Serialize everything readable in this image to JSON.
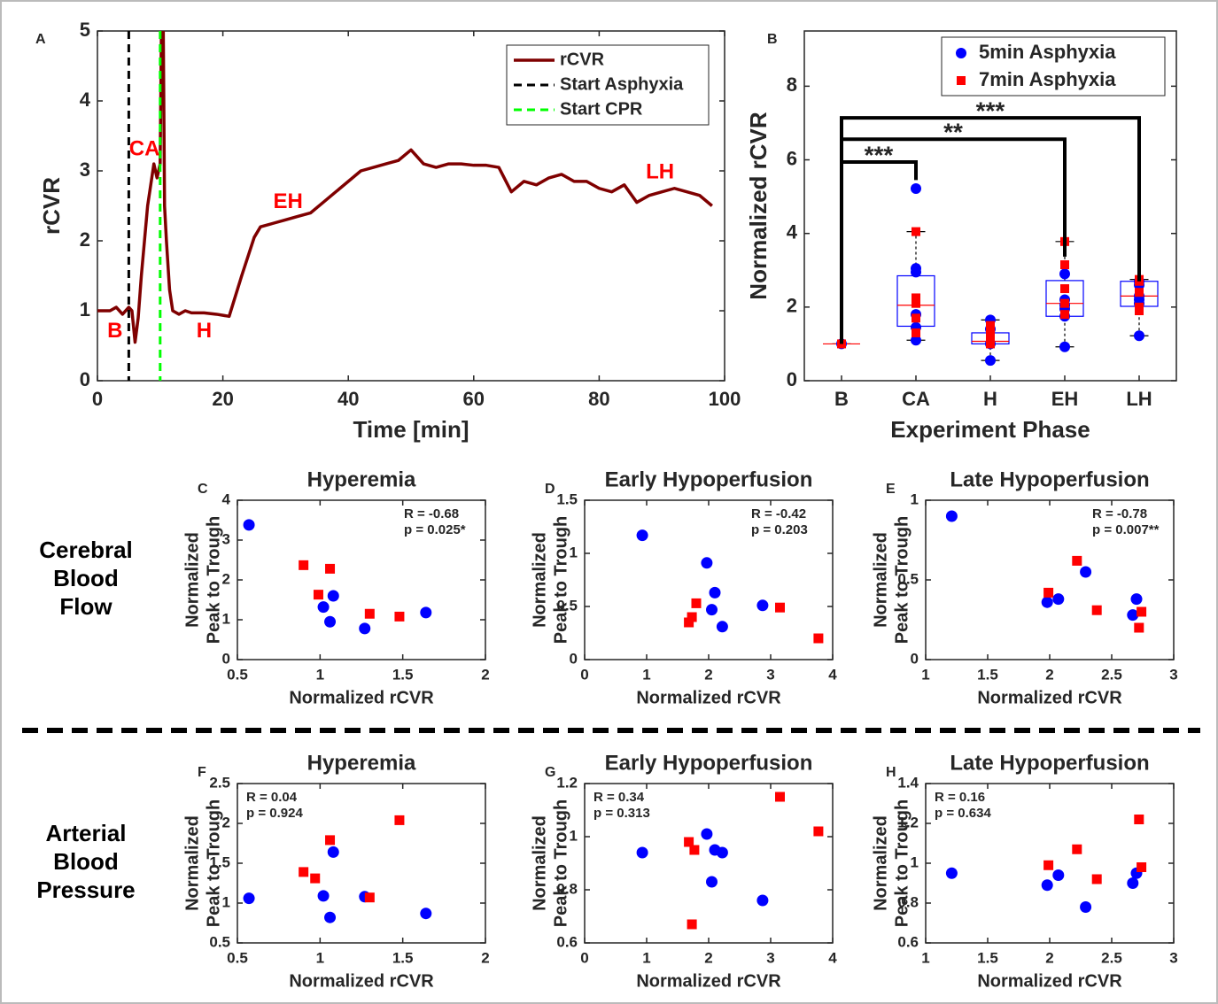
{
  "chart_data": [
    {
      "type": "line",
      "panel": "A",
      "xlabel": "Time [min]",
      "ylabel": "rCVR",
      "xlim": [
        0,
        100
      ],
      "ylim": [
        0,
        5
      ],
      "xticks": [
        0,
        20,
        40,
        60,
        80,
        100
      ],
      "yticks": [
        0,
        1,
        2,
        3,
        4,
        5
      ],
      "legend": "upper right",
      "series": [
        {
          "name": "rCVR",
          "color": "#7f0000",
          "x": [
            0,
            2,
            3,
            4,
            5,
            5.5,
            6,
            6.5,
            7,
            7.5,
            8,
            8.5,
            9,
            9.5,
            10,
            10.2,
            10.5,
            10.7,
            11,
            11.5,
            12,
            13,
            14,
            15,
            17,
            19,
            21,
            23,
            25,
            26,
            28,
            30,
            32,
            34,
            36,
            38,
            40,
            42,
            44,
            46,
            48,
            50,
            52,
            54,
            56,
            58,
            60,
            62,
            64,
            66,
            68,
            70,
            72,
            74,
            76,
            78,
            80,
            82,
            84,
            86,
            88,
            90,
            92,
            94,
            96,
            98
          ],
          "values": [
            1.0,
            1.0,
            1.05,
            0.95,
            1.05,
            1.0,
            0.55,
            0.9,
            1.5,
            2.0,
            2.5,
            2.8,
            3.1,
            2.9,
            3.1,
            5,
            5,
            2.5,
            2.0,
            1.3,
            1.0,
            0.95,
            1.0,
            0.97,
            0.97,
            0.95,
            0.92,
            1.5,
            2.05,
            2.2,
            2.25,
            2.3,
            2.35,
            2.4,
            2.55,
            2.7,
            2.85,
            3.0,
            3.05,
            3.1,
            3.15,
            3.3,
            3.1,
            3.05,
            3.1,
            3.1,
            3.08,
            3.08,
            3.05,
            2.7,
            2.85,
            2.8,
            2.9,
            2.95,
            2.85,
            2.85,
            2.75,
            2.7,
            2.8,
            2.55,
            2.65,
            2.7,
            2.75,
            2.7,
            2.65,
            2.5
          ]
        }
      ],
      "vlines": [
        {
          "name": "Start Asphyxia",
          "x": 5,
          "color": "#000000"
        },
        {
          "name": "Start CPR",
          "x": 10,
          "color": "#00ff00"
        }
      ],
      "annotations": [
        {
          "text": "B",
          "x": 2.8,
          "y": 0.7
        },
        {
          "text": "CA",
          "x": 7.5,
          "y": 3.3
        },
        {
          "text": "H",
          "x": 17,
          "y": 0.7
        },
        {
          "text": "EH",
          "x": 30.4,
          "y": 2.55
        },
        {
          "text": "LH",
          "x": 89.7,
          "y": 2.97
        }
      ],
      "annotation_color": "#ff0000"
    },
    {
      "type": "box",
      "panel": "B",
      "xlabel": "Experiment Phase",
      "ylabel": "Normalized rCVR",
      "categories": [
        "B",
        "CA",
        "H",
        "EH",
        "LH"
      ],
      "ylim": [
        0,
        9.5
      ],
      "yticks": [
        0,
        2,
        4,
        6,
        8
      ],
      "legend": "upper right",
      "boxes": [
        {
          "q1": 1,
          "median": 1,
          "q3": 1,
          "low": 1,
          "high": 1
        },
        {
          "q1": 1.48,
          "median": 2.05,
          "q3": 2.85,
          "low": 1.1,
          "high": 4.05
        },
        {
          "q1": 1.0,
          "median": 1.07,
          "q3": 1.3,
          "low": 0.55,
          "high": 1.65
        },
        {
          "q1": 1.75,
          "median": 2.1,
          "q3": 2.72,
          "low": 0.92,
          "high": 3.78
        },
        {
          "q1": 2.02,
          "median": 2.3,
          "q3": 2.7,
          "low": 1.22,
          "high": 2.75
        }
      ],
      "series": [
        {
          "name": "5min Asphyxia",
          "color": "#0000ff",
          "marker": "circle",
          "values": [
            [
              1
            ],
            [
              5.22,
              3.05,
              2.95,
              1.8,
              1.45,
              1.1
            ],
            [
              1.65,
              1.4,
              1.0,
              0.55
            ],
            [
              2.9,
              2.2,
              2.05,
              1.95,
              1.75,
              0.92
            ],
            [
              2.7,
              2.6,
              2.3,
              2.2,
              2.1,
              1.22
            ]
          ]
        },
        {
          "name": "7min Asphyxia",
          "color": "#ff0000",
          "marker": "square",
          "values": [
            [
              1
            ],
            [
              4.05,
              2.25,
              2.1,
              1.7,
              1.3
            ],
            [
              1.5,
              1.3,
              1.2,
              1.0
            ],
            [
              3.78,
              3.15,
              2.5,
              2.1,
              1.8
            ],
            [
              2.75,
              2.7,
              2.4,
              2.0,
              1.9
            ]
          ]
        }
      ],
      "brackets": [
        {
          "from": "B",
          "to": "CA",
          "y": 5.94,
          "drop": 5.45,
          "label": "***"
        },
        {
          "from": "B",
          "to": "EH",
          "y": 6.56,
          "drop": 3.37,
          "label": "**"
        },
        {
          "from": "B",
          "to": "LH",
          "y": 7.14,
          "drop": 2.7,
          "label": "***"
        }
      ]
    },
    {
      "type": "scatter",
      "panel": "C",
      "title": "Hyperemia",
      "xlabel": "Normalized rCVR",
      "ylabel": [
        "Normalized",
        "Peak to Trough"
      ],
      "xlim": [
        0.5,
        2
      ],
      "ylim": [
        0,
        4
      ],
      "xticks": [
        0.5,
        1,
        1.5,
        2
      ],
      "yticks": [
        0,
        1,
        2,
        3,
        4
      ],
      "annotation": [
        "R = -0.68",
        "p = 0.025*"
      ],
      "annotation_corner": "upper right",
      "series": [
        {
          "color": "#0000ff",
          "marker": "circle",
          "x": [
            0.57,
            1.02,
            1.06,
            1.08,
            1.27,
            1.64
          ],
          "values": [
            3.38,
            1.32,
            0.95,
            1.6,
            0.78,
            1.18
          ]
        },
        {
          "color": "#ff0000",
          "marker": "square",
          "x": [
            0.9,
            0.99,
            1.06,
            1.3,
            1.48
          ],
          "values": [
            2.37,
            1.63,
            2.28,
            1.15,
            1.08
          ]
        }
      ]
    },
    {
      "type": "scatter",
      "panel": "D",
      "title": "Early Hypoperfusion",
      "xlabel": "Normalized rCVR",
      "ylabel": [
        "Normalized",
        "Peak to Trough"
      ],
      "xlim": [
        0,
        4
      ],
      "ylim": [
        0,
        1.5
      ],
      "xticks": [
        0,
        1,
        2,
        3,
        4
      ],
      "yticks": [
        0,
        0.5,
        1,
        1.5
      ],
      "annotation": [
        "R = -0.42",
        "p = 0.203"
      ],
      "annotation_corner": "upper right",
      "series": [
        {
          "color": "#0000ff",
          "marker": "circle",
          "x": [
            0.93,
            1.97,
            2.1,
            2.05,
            2.22,
            2.87
          ],
          "values": [
            1.17,
            0.91,
            0.63,
            0.47,
            0.31,
            0.51
          ]
        },
        {
          "color": "#ff0000",
          "marker": "square",
          "x": [
            1.68,
            1.73,
            1.8,
            3.15,
            3.77
          ],
          "values": [
            0.35,
            0.4,
            0.53,
            0.49,
            0.2
          ]
        }
      ]
    },
    {
      "type": "scatter",
      "panel": "E",
      "title": "Late Hypoperfusion",
      "xlabel": "Normalized rCVR",
      "ylabel": [
        "Normalized",
        "Peak to Trough"
      ],
      "xlim": [
        1,
        3
      ],
      "ylim": [
        0,
        1
      ],
      "xticks": [
        1,
        1.5,
        2,
        2.5,
        3
      ],
      "yticks": [
        0,
        0.5,
        1
      ],
      "annotation": [
        "R = -0.78",
        "p = 0.007**"
      ],
      "annotation_corner": "upper right",
      "series": [
        {
          "color": "#0000ff",
          "marker": "circle",
          "x": [
            1.21,
            1.98,
            2.07,
            2.29,
            2.67,
            2.7
          ],
          "values": [
            0.9,
            0.36,
            0.38,
            0.55,
            0.28,
            0.38
          ]
        },
        {
          "color": "#ff0000",
          "marker": "square",
          "x": [
            1.99,
            2.22,
            2.38,
            2.72,
            2.74
          ],
          "values": [
            0.42,
            0.62,
            0.31,
            0.2,
            0.3
          ]
        }
      ]
    },
    {
      "type": "scatter",
      "panel": "F",
      "title": "Hyperemia",
      "xlabel": "Normalized rCVR",
      "ylabel": [
        "Normalized",
        "Peak to Trough"
      ],
      "xlim": [
        0.5,
        2
      ],
      "ylim": [
        0.5,
        2.5
      ],
      "xticks": [
        0.5,
        1,
        1.5,
        2
      ],
      "yticks": [
        0.5,
        1,
        1.5,
        2,
        2.5
      ],
      "annotation": [
        "R = 0.04",
        "p = 0.924"
      ],
      "annotation_corner": "upper left",
      "series": [
        {
          "color": "#0000ff",
          "marker": "circle",
          "x": [
            0.57,
            1.02,
            1.06,
            1.08,
            1.27,
            1.64
          ],
          "values": [
            1.06,
            1.09,
            0.82,
            1.64,
            1.08,
            0.87
          ]
        },
        {
          "color": "#ff0000",
          "marker": "square",
          "x": [
            0.9,
            0.97,
            1.06,
            1.3,
            1.48
          ],
          "values": [
            1.39,
            1.31,
            1.79,
            1.07,
            2.04
          ]
        }
      ]
    },
    {
      "type": "scatter",
      "panel": "G",
      "title": "Early Hypoperfusion",
      "xlabel": "Normalized rCVR",
      "ylabel": [
        "Normalized",
        "Peak to Trough"
      ],
      "xlim": [
        0,
        4
      ],
      "ylim": [
        0.6,
        1.2
      ],
      "xticks": [
        0,
        1,
        2,
        3,
        4
      ],
      "yticks": [
        0.6,
        0.8,
        1,
        1.2
      ],
      "annotation": [
        "R = 0.34",
        "p = 0.313"
      ],
      "annotation_corner": "upper left",
      "series": [
        {
          "color": "#0000ff",
          "marker": "circle",
          "x": [
            0.93,
            1.97,
            2.1,
            2.05,
            2.22,
            2.87
          ],
          "values": [
            0.94,
            1.01,
            0.95,
            0.83,
            0.94,
            0.76
          ]
        },
        {
          "color": "#ff0000",
          "marker": "square",
          "x": [
            1.68,
            1.77,
            1.73,
            3.15,
            3.77
          ],
          "values": [
            0.98,
            0.95,
            0.67,
            1.15,
            1.02
          ]
        }
      ]
    },
    {
      "type": "scatter",
      "panel": "H",
      "title": "Late Hypoperfusion",
      "xlabel": "Normalized rCVR",
      "ylabel": [
        "Normalized",
        "Peak to Trough"
      ],
      "xlim": [
        1,
        3
      ],
      "ylim": [
        0.6,
        1.4
      ],
      "xticks": [
        1,
        1.5,
        2,
        2.5,
        3
      ],
      "yticks": [
        0.6,
        0.8,
        1,
        1.2,
        1.4
      ],
      "annotation": [
        "R = 0.16",
        "p = 0.634"
      ],
      "annotation_corner": "upper left",
      "series": [
        {
          "color": "#0000ff",
          "marker": "circle",
          "x": [
            1.21,
            1.98,
            2.07,
            2.29,
            2.67,
            2.7
          ],
          "values": [
            0.95,
            0.89,
            0.94,
            0.78,
            0.9,
            0.95
          ]
        },
        {
          "color": "#ff0000",
          "marker": "square",
          "x": [
            1.99,
            2.22,
            2.38,
            2.72,
            2.74
          ],
          "values": [
            0.99,
            1.07,
            0.92,
            1.22,
            0.98
          ]
        }
      ]
    }
  ],
  "row_labels": [
    [
      "Cerebral",
      "Blood",
      "Flow"
    ],
    [
      "Arterial",
      "Blood",
      "Pressure"
    ]
  ]
}
